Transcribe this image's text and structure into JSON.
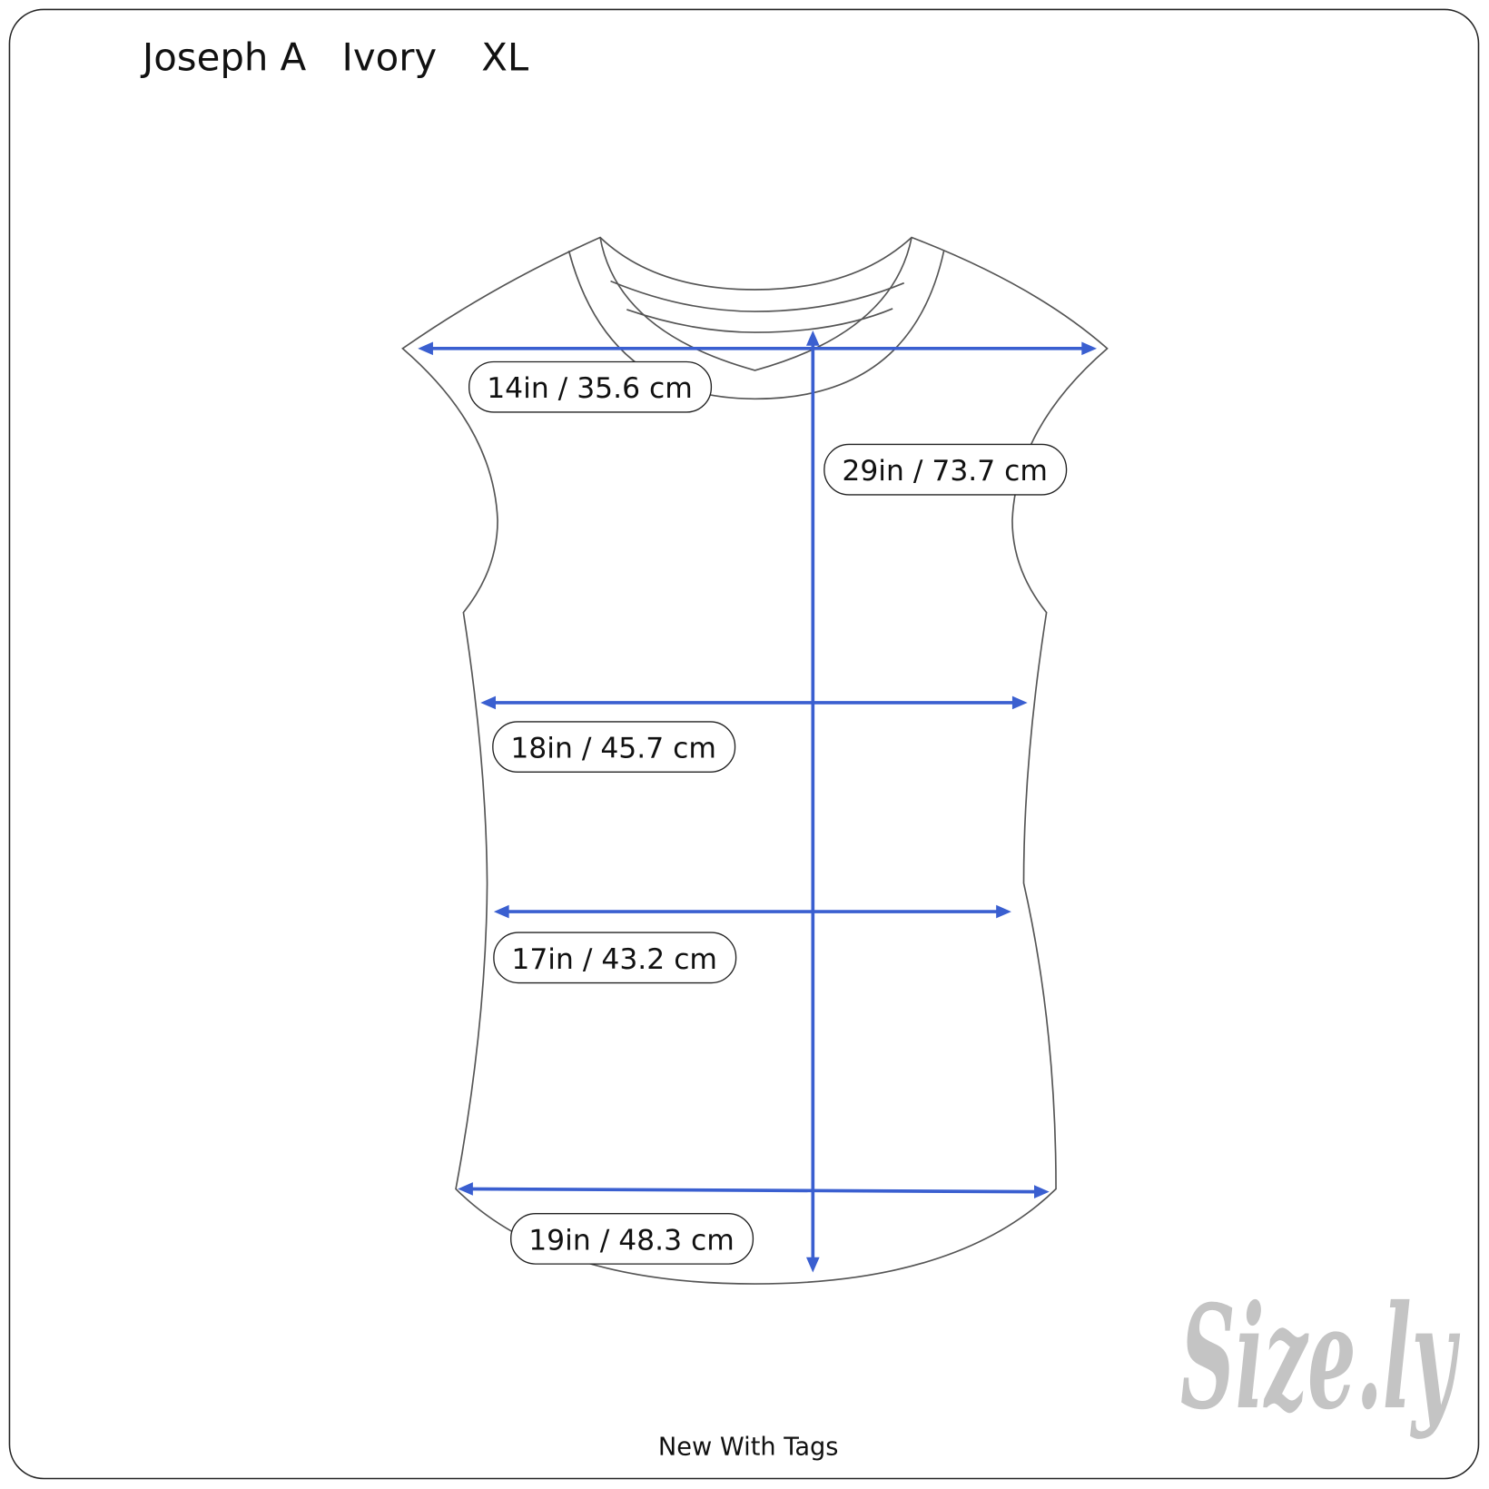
{
  "header": {
    "brand": "Joseph A",
    "color": "Ivory",
    "size": "XL"
  },
  "measurements": [
    {
      "name": "shoulder",
      "label": "14in / 35.6 cm"
    },
    {
      "name": "length",
      "label": "29in / 73.7 cm"
    },
    {
      "name": "chest",
      "label": "18in / 45.7 cm"
    },
    {
      "name": "waist",
      "label": "17in / 43.2 cm"
    },
    {
      "name": "hem",
      "label": "19in / 48.3 cm"
    }
  ],
  "condition": "New With Tags",
  "logo": {
    "text": "Size.ly",
    "dot_color": "#a9c8f2"
  },
  "colors": {
    "arrow": "#3a5fd0",
    "outline": "#555555",
    "logo": "#c4c4c4"
  }
}
